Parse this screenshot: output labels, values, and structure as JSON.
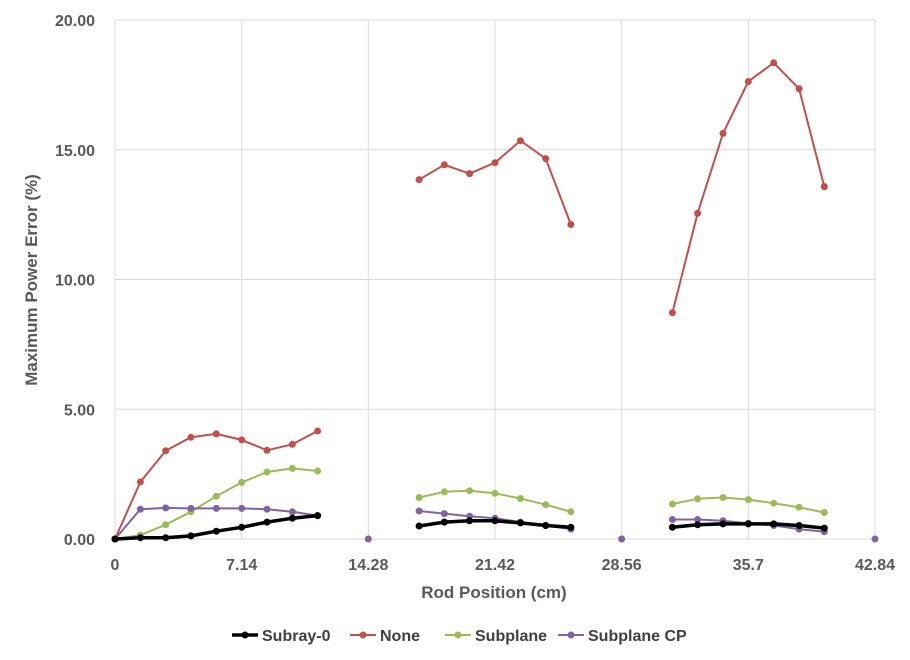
{
  "chart_data": {
    "type": "line",
    "title": "",
    "xlabel": "Rod Position  (cm)",
    "ylabel": "Maximum Power Error  (%)",
    "xlim": [
      0,
      42.84
    ],
    "ylim": [
      0,
      20
    ],
    "x_ticks": [
      0,
      7.14,
      14.28,
      21.42,
      28.56,
      35.7,
      42.84
    ],
    "x_tick_labels": [
      "0",
      "7.14",
      "14.28",
      "21.42",
      "28.56",
      "35.7",
      "42.84"
    ],
    "y_ticks": [
      0,
      5,
      10,
      15,
      20
    ],
    "y_tick_labels": [
      "0.00",
      "5.00",
      "10.00",
      "15.00",
      "20.00"
    ],
    "grid": "vertical and horizontal major gridlines",
    "legend_position": "bottom",
    "series": [
      {
        "name": "Subray-0",
        "color": "#000000",
        "segments": [
          [
            [
              0,
              0
            ],
            [
              1.43,
              0.05
            ],
            [
              2.86,
              0.05
            ],
            [
              4.28,
              0.12
            ],
            [
              5.71,
              0.3
            ],
            [
              7.14,
              0.45
            ],
            [
              8.57,
              0.65
            ],
            [
              10.0,
              0.8
            ],
            [
              11.42,
              0.9
            ]
          ],
          [
            [
              17.14,
              0.5
            ],
            [
              18.56,
              0.65
            ],
            [
              19.99,
              0.7
            ],
            [
              21.42,
              0.7
            ],
            [
              22.85,
              0.62
            ],
            [
              24.28,
              0.52
            ],
            [
              25.7,
              0.45
            ]
          ],
          [
            [
              31.42,
              0.45
            ],
            [
              32.84,
              0.55
            ],
            [
              34.27,
              0.58
            ],
            [
              35.7,
              0.58
            ],
            [
              37.13,
              0.58
            ],
            [
              38.56,
              0.52
            ],
            [
              39.98,
              0.42
            ]
          ]
        ]
      },
      {
        "name": "None",
        "color": "#c0504d",
        "segments": [
          [
            [
              0,
              0
            ],
            [
              1.43,
              2.2
            ],
            [
              2.86,
              3.4
            ],
            [
              4.28,
              3.92
            ],
            [
              5.71,
              4.05
            ],
            [
              7.14,
              3.82
            ],
            [
              8.57,
              3.42
            ],
            [
              10.0,
              3.65
            ],
            [
              11.42,
              4.16
            ]
          ],
          [
            [
              17.14,
              13.85
            ],
            [
              18.56,
              14.42
            ],
            [
              19.99,
              14.08
            ],
            [
              21.42,
              14.5
            ],
            [
              22.85,
              15.35
            ],
            [
              24.28,
              14.66
            ],
            [
              25.7,
              12.12
            ]
          ],
          [
            [
              31.42,
              8.72
            ],
            [
              32.84,
              12.55
            ],
            [
              34.27,
              15.63
            ],
            [
              35.7,
              17.63
            ],
            [
              37.13,
              18.35
            ],
            [
              38.56,
              17.35
            ],
            [
              39.98,
              13.58
            ]
          ]
        ]
      },
      {
        "name": "Subplane",
        "color": "#9bbb59",
        "segments": [
          [
            [
              0,
              0
            ],
            [
              1.43,
              0.15
            ],
            [
              2.86,
              0.55
            ],
            [
              4.28,
              1.05
            ],
            [
              5.71,
              1.65
            ],
            [
              7.14,
              2.18
            ],
            [
              8.57,
              2.58
            ],
            [
              10.0,
              2.72
            ],
            [
              11.42,
              2.62
            ]
          ],
          [
            [
              17.14,
              1.6
            ],
            [
              18.56,
              1.82
            ],
            [
              19.99,
              1.86
            ],
            [
              21.42,
              1.76
            ],
            [
              22.85,
              1.56
            ],
            [
              24.28,
              1.32
            ],
            [
              25.7,
              1.05
            ]
          ],
          [
            [
              31.42,
              1.35
            ],
            [
              32.84,
              1.55
            ],
            [
              34.27,
              1.6
            ],
            [
              35.7,
              1.52
            ],
            [
              37.13,
              1.38
            ],
            [
              38.56,
              1.22
            ],
            [
              39.98,
              1.02
            ]
          ]
        ]
      },
      {
        "name": "Subplane CP",
        "color": "#8064a2",
        "segments": [
          [
            [
              0,
              0
            ],
            [
              1.43,
              1.15
            ],
            [
              2.86,
              1.2
            ],
            [
              4.28,
              1.18
            ],
            [
              5.71,
              1.18
            ],
            [
              7.14,
              1.18
            ],
            [
              8.57,
              1.15
            ],
            [
              10.0,
              1.05
            ],
            [
              11.42,
              0.9
            ]
          ],
          [
            [
              14.28,
              0
            ]
          ],
          [
            [
              17.14,
              1.08
            ],
            [
              18.56,
              0.98
            ],
            [
              19.99,
              0.88
            ],
            [
              21.42,
              0.8
            ],
            [
              22.85,
              0.65
            ],
            [
              24.28,
              0.52
            ],
            [
              25.7,
              0.38
            ]
          ],
          [
            [
              28.56,
              0
            ]
          ],
          [
            [
              31.42,
              0.75
            ],
            [
              32.84,
              0.75
            ],
            [
              34.27,
              0.7
            ],
            [
              35.7,
              0.6
            ],
            [
              37.13,
              0.52
            ],
            [
              38.56,
              0.38
            ],
            [
              39.98,
              0.28
            ]
          ],
          [
            [
              42.84,
              0
            ]
          ]
        ]
      }
    ]
  }
}
